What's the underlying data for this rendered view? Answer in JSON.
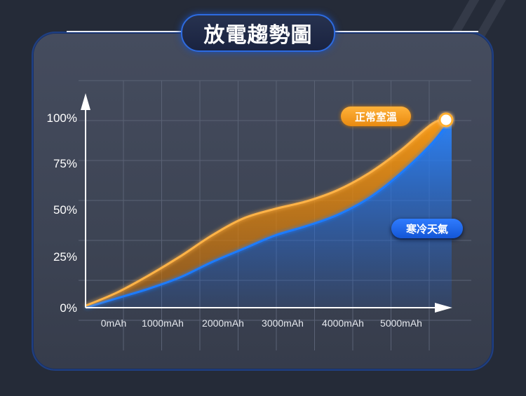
{
  "title": "放電趨勢圖",
  "legend": {
    "normal": "正常室溫",
    "cold": "寒冷天氣"
  },
  "colors": {
    "normal": "#f0960f",
    "cold": "#1f7bff",
    "background": "#252b38",
    "panel": "#424959"
  },
  "chart_data": {
    "type": "area",
    "title": "放電趨勢圖",
    "xlabel": "",
    "ylabel": "",
    "x_ticks": [
      "0mAh",
      "1000mAh",
      "2000mAh",
      "3000mAh",
      "4000mAh",
      "5000mAh"
    ],
    "y_ticks": [
      "0%",
      "25%",
      "50%",
      "75%",
      "100%"
    ],
    "xlim": [
      0,
      6000
    ],
    "ylim": [
      0,
      100
    ],
    "grid": true,
    "series": [
      {
        "name": "正常室溫",
        "x": [
          0,
          500,
          1000,
          1500,
          2000,
          2500,
          3000,
          3500,
          4000,
          4500,
          5000,
          5500,
          5800
        ],
        "y": [
          1,
          8,
          17,
          27,
          38,
          47,
          52,
          56,
          62,
          71,
          83,
          97,
          100
        ]
      },
      {
        "name": "寒冷天氣",
        "x": [
          0,
          500,
          1000,
          1500,
          2000,
          2500,
          3000,
          3500,
          4000,
          4500,
          5000,
          5500,
          5800
        ],
        "y": [
          0,
          5,
          10,
          16,
          24,
          31,
          38,
          43,
          49,
          58,
          71,
          87,
          100
        ]
      }
    ]
  }
}
